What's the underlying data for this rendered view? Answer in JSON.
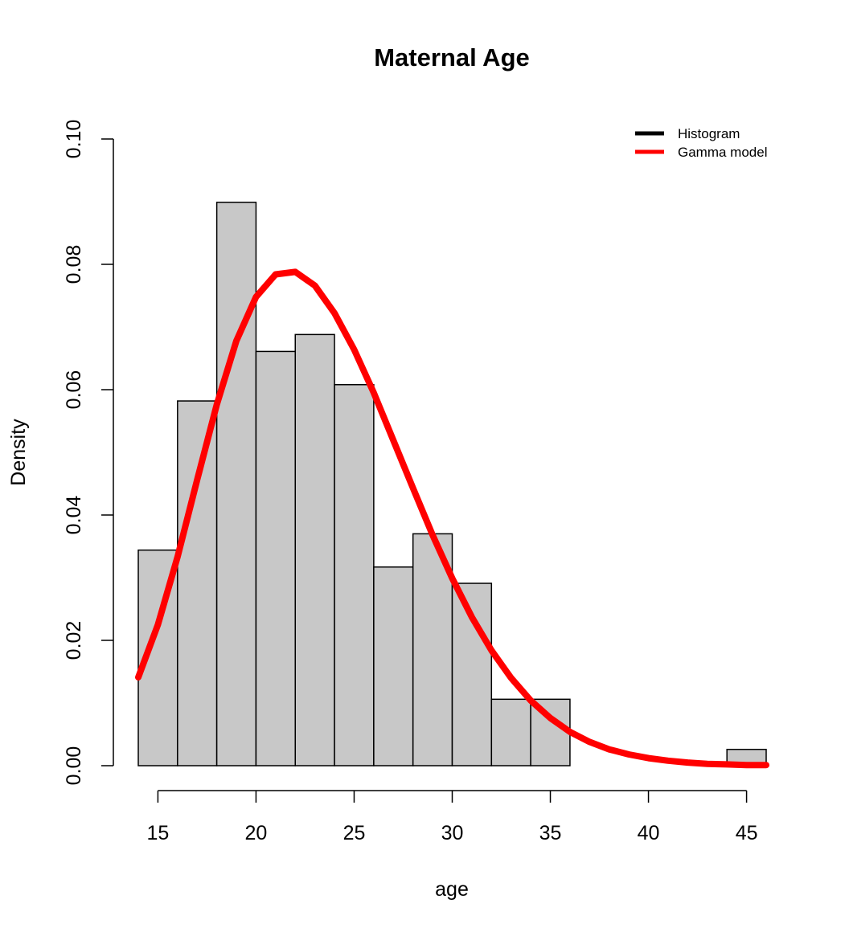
{
  "chart_data": {
    "type": "bar",
    "title": "Maternal Age",
    "xlabel": "age",
    "ylabel": "Density",
    "xlim": [
      14,
      46
    ],
    "ylim": [
      0,
      0.1
    ],
    "x_ticks": [
      15,
      20,
      25,
      30,
      35,
      40,
      45
    ],
    "y_ticks": [
      0,
      0.02,
      0.04,
      0.06,
      0.08,
      0.1
    ],
    "y_tick_labels": [
      "0.00",
      "0.02",
      "0.04",
      "0.06",
      "0.08",
      "0.10"
    ],
    "grid": false,
    "bins": [
      {
        "x0": 14,
        "x1": 16,
        "density": 0.0344
      },
      {
        "x0": 16,
        "x1": 18,
        "density": 0.0582
      },
      {
        "x0": 18,
        "x1": 20,
        "density": 0.0899
      },
      {
        "x0": 20,
        "x1": 22,
        "density": 0.0661
      },
      {
        "x0": 22,
        "x1": 24,
        "density": 0.0688
      },
      {
        "x0": 24,
        "x1": 26,
        "density": 0.0608
      },
      {
        "x0": 26,
        "x1": 28,
        "density": 0.0317
      },
      {
        "x0": 28,
        "x1": 30,
        "density": 0.037
      },
      {
        "x0": 30,
        "x1": 32,
        "density": 0.0291
      },
      {
        "x0": 32,
        "x1": 34,
        "density": 0.0106
      },
      {
        "x0": 34,
        "x1": 36,
        "density": 0.0106
      },
      {
        "x0": 36,
        "x1": 38,
        "density": 0
      },
      {
        "x0": 38,
        "x1": 40,
        "density": 0
      },
      {
        "x0": 40,
        "x1": 42,
        "density": 0
      },
      {
        "x0": 42,
        "x1": 44,
        "density": 0
      },
      {
        "x0": 44,
        "x1": 46,
        "density": 0.0026
      }
    ],
    "series": [
      {
        "name": "Gamma model",
        "color": "#ff0000",
        "x": [
          14,
          15,
          16,
          17,
          18,
          19,
          20,
          21,
          22,
          23,
          24,
          25,
          26,
          27,
          28,
          29,
          30,
          31,
          32,
          33,
          34,
          35,
          36,
          37,
          38,
          39,
          40,
          41,
          42,
          43,
          44,
          45,
          46
        ],
        "y": [
          0.0141,
          0.0225,
          0.0333,
          0.0456,
          0.0576,
          0.0678,
          0.0748,
          0.0784,
          0.0788,
          0.0766,
          0.0722,
          0.0664,
          0.0595,
          0.0519,
          0.0443,
          0.0368,
          0.0299,
          0.0237,
          0.0184,
          0.014,
          0.0104,
          0.0076,
          0.0054,
          0.0038,
          0.0026,
          0.0018,
          0.0012,
          0.0008,
          0.0005,
          0.0003,
          0.0002,
          0.0001,
          0.0001
        ]
      }
    ],
    "bar_color": "#c8c8c8",
    "legend": {
      "position": "top-right",
      "entries": [
        {
          "label": "Histogram",
          "color": "#000000"
        },
        {
          "label": "Gamma model",
          "color": "#ff0000"
        }
      ]
    }
  }
}
